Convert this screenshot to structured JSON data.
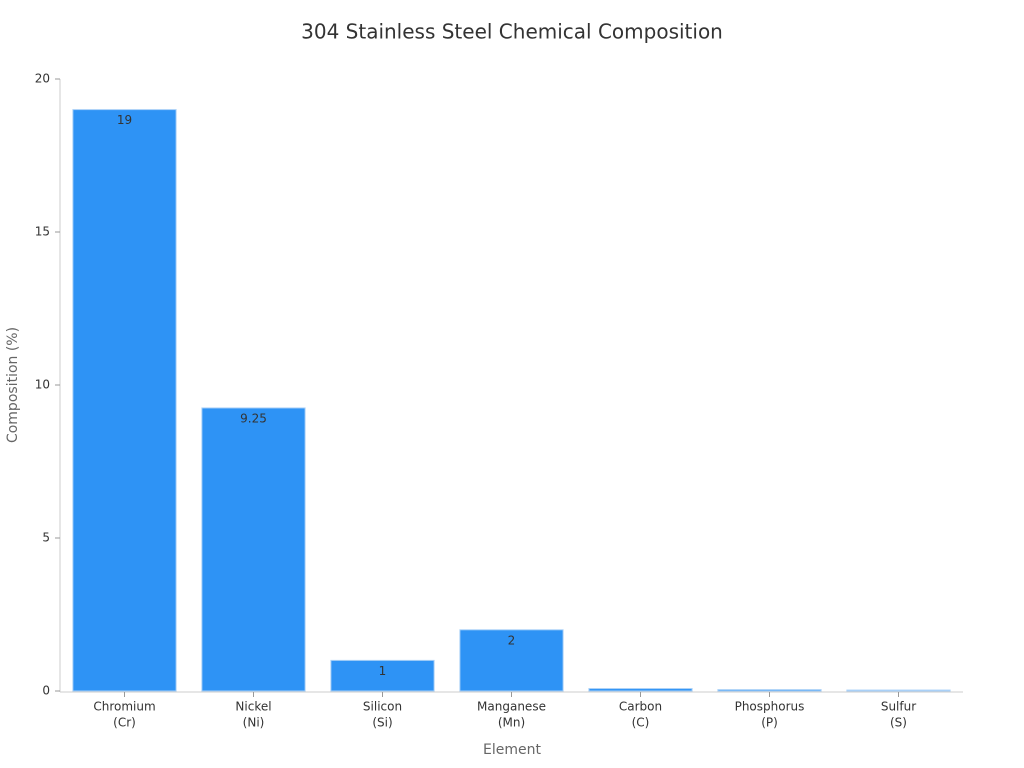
{
  "chart_data": {
    "type": "bar",
    "title": "304 Stainless Steel Chemical Composition",
    "x_label": "Element",
    "y_label": "Composition (%)",
    "categories": [
      [
        "Chromium",
        "(Cr)"
      ],
      [
        "Nickel",
        "(Ni)"
      ],
      [
        "Silicon",
        "(Si)"
      ],
      [
        "Manganese",
        "(Mn)"
      ],
      [
        "Carbon",
        "(C)"
      ],
      [
        "Phosphorus",
        "(P)"
      ],
      [
        "Sulfur",
        "(S)"
      ]
    ],
    "values": [
      19,
      9.25,
      1,
      2,
      0.08,
      0.045,
      0.03
    ],
    "color": "#2e93f5",
    "ylim": [
      0,
      20
    ],
    "yticks": [
      0,
      5,
      10,
      15,
      20
    ],
    "grid": false
  }
}
